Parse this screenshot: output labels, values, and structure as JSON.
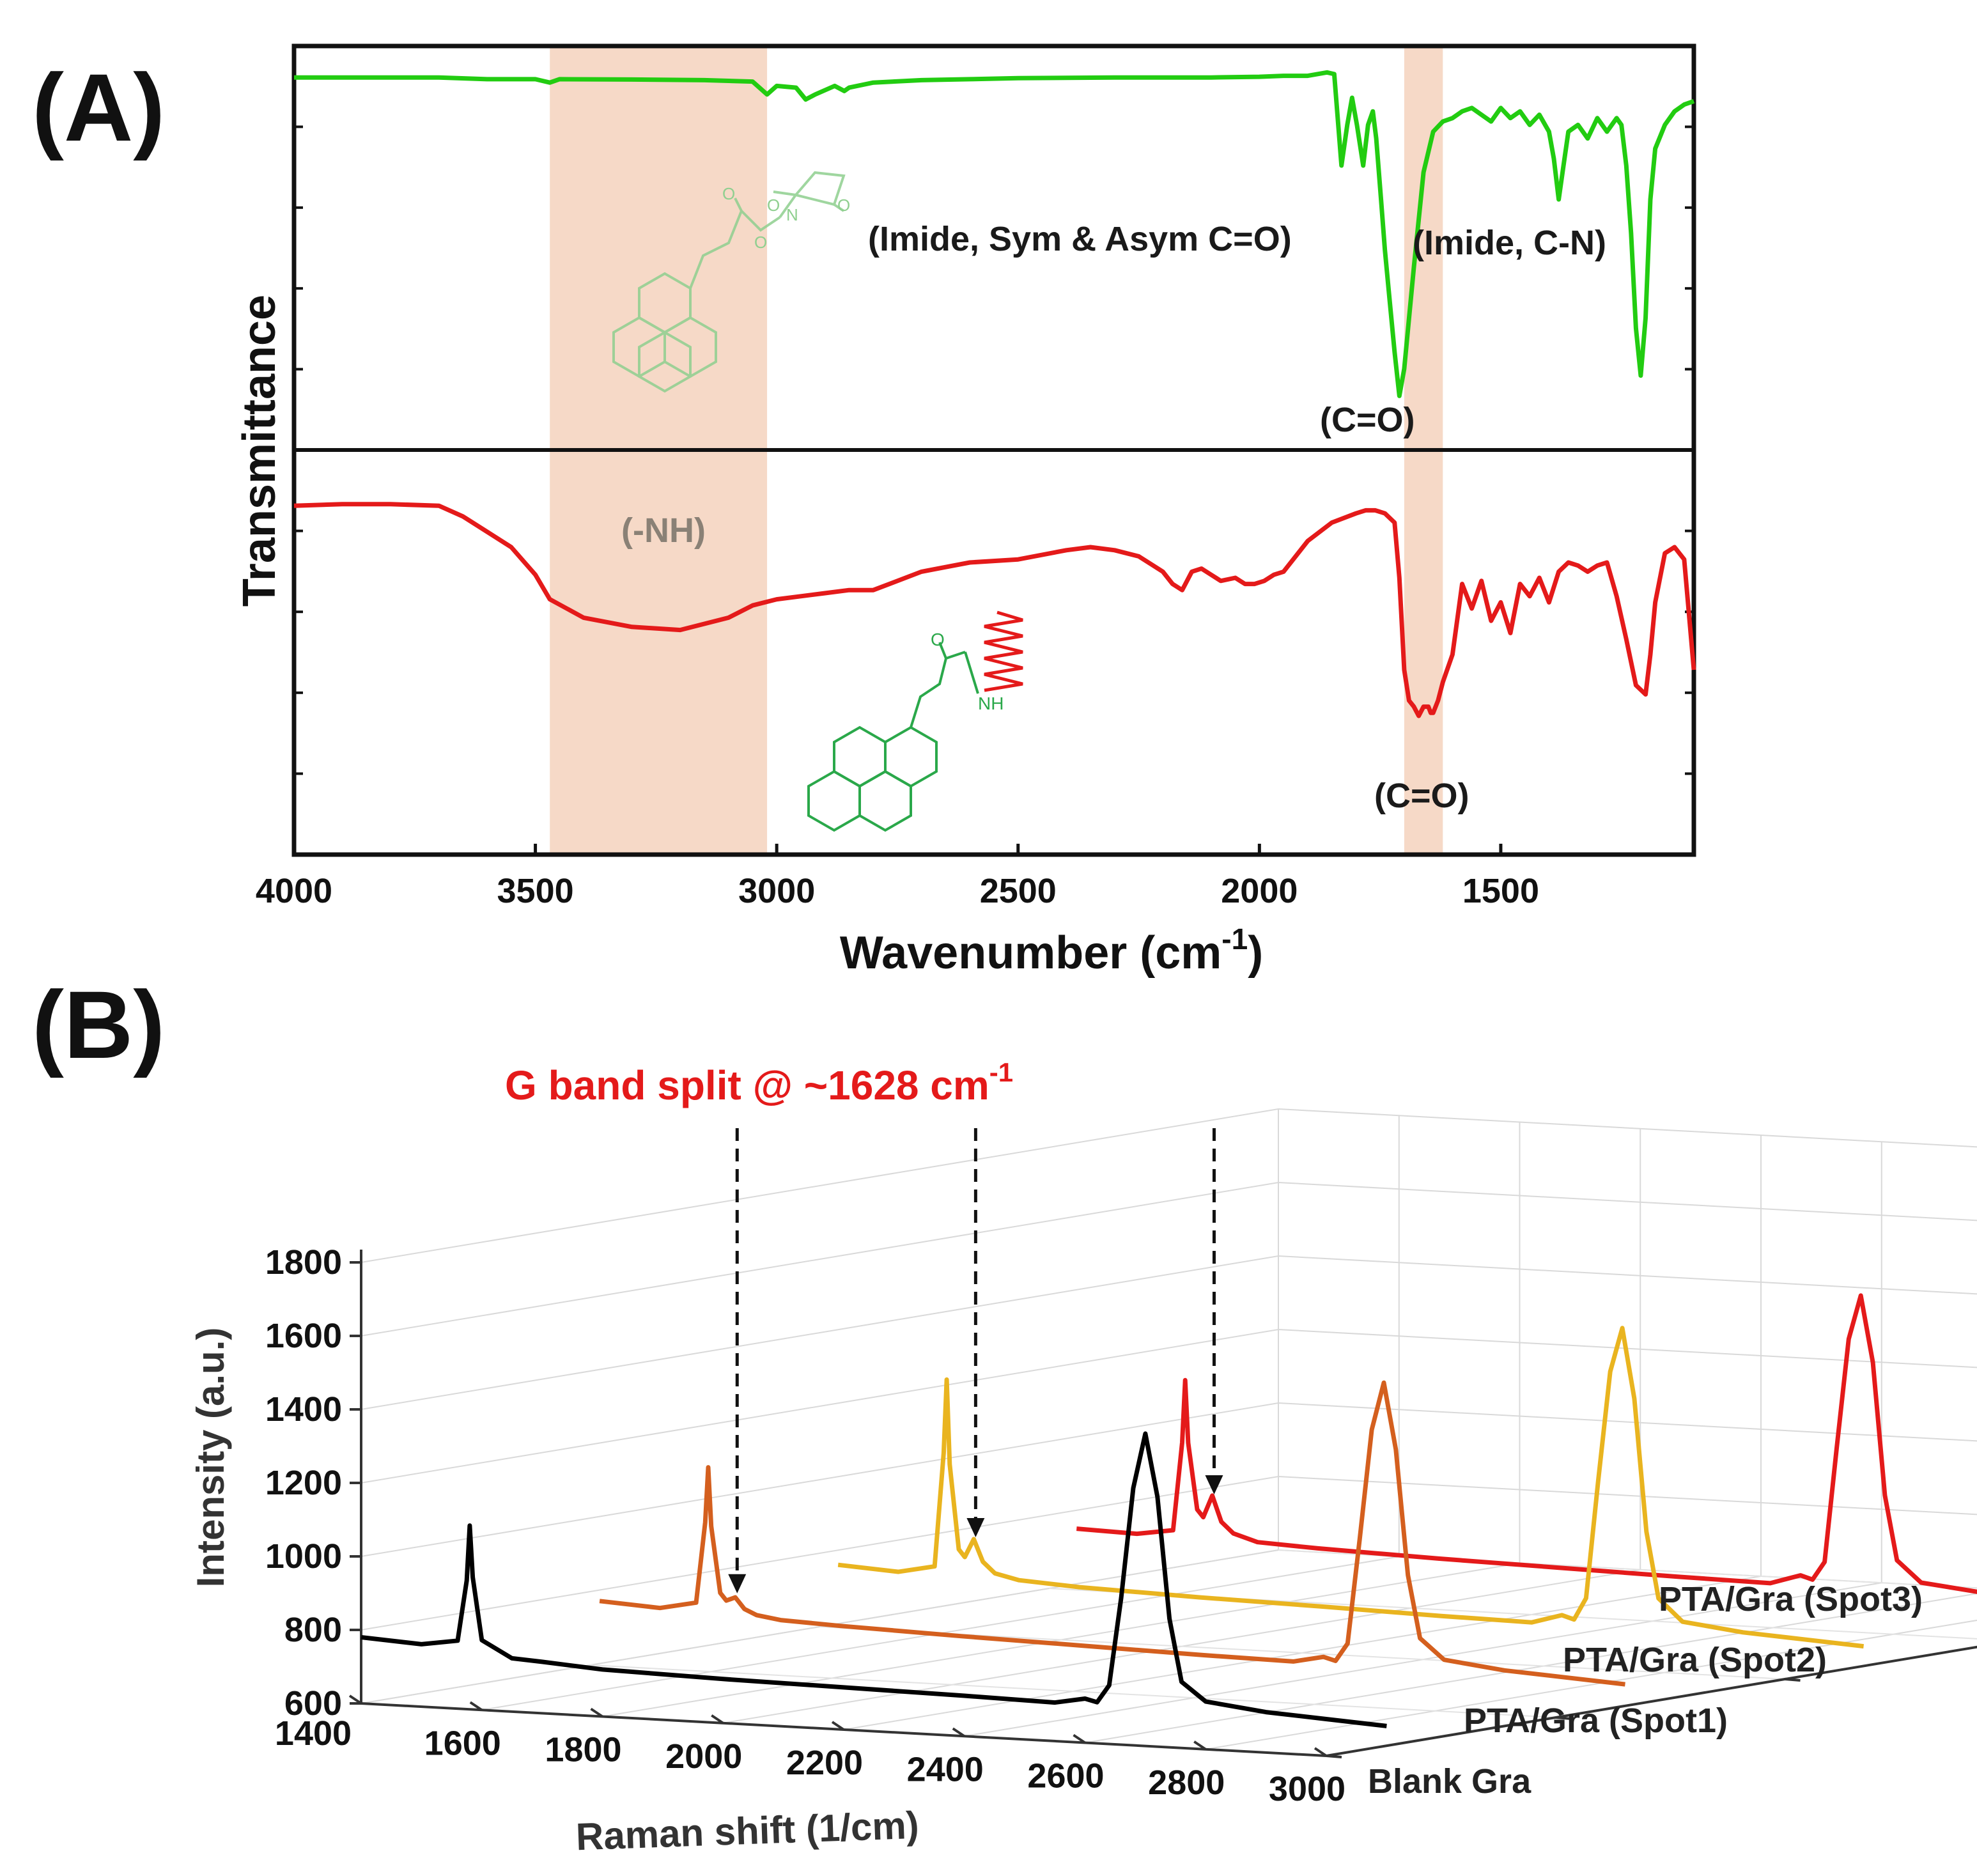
{
  "panel_a_label": "(A)",
  "panel_b_label": "(B)",
  "colors": {
    "ftir_top": "#22cc11",
    "ftir_bottom": "#e41a1a",
    "band": "#f6d9c7",
    "blank": "#000000",
    "spot1": "#d45f1e",
    "spot2": "#e9b41f",
    "spot3": "#e41a1a",
    "annotation_red": "#e41a1a"
  },
  "chart_data": [
    {
      "type": "line",
      "title": "",
      "xlabel": "Wavenumber (cm",
      "xlabel_sup": "-1",
      "xlabel_end": ")",
      "ylabel": "Transmittance",
      "xlim": [
        4000,
        1100
      ],
      "xticks": [
        "4000",
        "3500",
        "3000",
        "2500",
        "2000",
        "1500"
      ],
      "highlight_bands": [
        [
          3470,
          3020
        ],
        [
          1700,
          1620
        ]
      ],
      "annotations": {
        "imide_co": "(Imide, Sym & Asym C=O)",
        "imide_cn": "(Imide, C-N)",
        "co_top": "(C=O)",
        "nh": "(-NH)",
        "co_bottom": "(C=O)"
      },
      "structure_labels": {
        "o1": "O",
        "o2": "O",
        "o3": "O",
        "o4": "O",
        "n": "N",
        "o5": "O",
        "nh": "NH"
      },
      "series": [
        {
          "name": "top",
          "x": [
            4000,
            3900,
            3800,
            3700,
            3600,
            3500,
            3470,
            3450,
            3300,
            3150,
            3050,
            3020,
            3000,
            2960,
            2940,
            2920,
            2880,
            2860,
            2850,
            2800,
            2700,
            2600,
            2500,
            2400,
            2300,
            2200,
            2100,
            2000,
            1950,
            1900,
            1860,
            1845,
            1830,
            1818,
            1808,
            1798,
            1785,
            1775,
            1765,
            1758,
            1748,
            1740,
            1730,
            1720,
            1710,
            1700,
            1680,
            1660,
            1640,
            1620,
            1600,
            1580,
            1560,
            1540,
            1520,
            1500,
            1480,
            1460,
            1440,
            1420,
            1400,
            1390,
            1380,
            1370,
            1360,
            1340,
            1320,
            1300,
            1280,
            1260,
            1250,
            1240,
            1230,
            1220,
            1210,
            1200,
            1190,
            1180,
            1160,
            1140,
            1120,
            1100
          ],
          "y": [
            96,
            96,
            96,
            96,
            95.5,
            95.5,
            94.5,
            95.5,
            95.4,
            95.2,
            94.8,
            91,
            93.5,
            93,
            89.5,
            91,
            93.5,
            92,
            93,
            94.5,
            95.2,
            95.5,
            95.8,
            95.9,
            96,
            96,
            96,
            96.2,
            96.5,
            96.5,
            97.5,
            97,
            70,
            82,
            90,
            82,
            70,
            82,
            86,
            78,
            60,
            45,
            30,
            15,
            2,
            10,
            40,
            68,
            80,
            83,
            84,
            86,
            87,
            85,
            83,
            87,
            84,
            86,
            82,
            85,
            80,
            72,
            60,
            70,
            80,
            82,
            78,
            84,
            80,
            84,
            82,
            70,
            50,
            22,
            8,
            25,
            60,
            75,
            82,
            86,
            88,
            89
          ]
        },
        {
          "name": "bottom",
          "x": [
            4000,
            3900,
            3800,
            3700,
            3650,
            3600,
            3550,
            3500,
            3470,
            3400,
            3300,
            3200,
            3100,
            3050,
            3000,
            2950,
            2900,
            2850,
            2800,
            2700,
            2600,
            2500,
            2400,
            2350,
            2300,
            2250,
            2200,
            2180,
            2160,
            2150,
            2140,
            2120,
            2100,
            2080,
            2050,
            2030,
            2010,
            1990,
            1970,
            1950,
            1900,
            1850,
            1800,
            1780,
            1760,
            1740,
            1720,
            1710,
            1700,
            1690,
            1680,
            1670,
            1660,
            1650,
            1645,
            1640,
            1630,
            1620,
            1600,
            1580,
            1560,
            1540,
            1520,
            1500,
            1480,
            1460,
            1440,
            1420,
            1400,
            1380,
            1360,
            1340,
            1320,
            1300,
            1280,
            1260,
            1240,
            1220,
            1200,
            1190,
            1180,
            1160,
            1140,
            1120,
            1100
          ],
          "y": [
            93.5,
            94,
            94,
            93.5,
            90,
            85,
            80,
            71,
            63,
            57,
            54,
            53,
            57,
            61,
            63,
            64,
            65,
            66,
            66,
            72,
            75,
            76,
            79,
            80,
            79,
            77,
            72,
            68,
            66,
            69,
            72,
            73,
            71,
            69,
            70,
            68,
            68,
            69,
            71,
            72,
            82,
            88,
            91,
            92,
            92,
            91,
            88,
            70,
            40,
            30,
            28,
            25,
            28,
            28,
            26,
            26,
            30,
            36,
            45,
            68,
            60,
            69,
            56,
            62,
            52,
            68,
            64,
            70,
            62,
            72,
            75,
            74,
            72,
            74,
            75,
            64,
            50,
            35,
            32,
            45,
            62,
            78,
            80,
            76,
            40
          ]
        }
      ]
    },
    {
      "type": "line",
      "title": "",
      "xlabel": "Raman shift (1/cm)",
      "ylabel": "Intensity (a.u.)",
      "xlim": [
        1400,
        3000
      ],
      "ylim": [
        600,
        1800
      ],
      "xticks": [
        "1400",
        "1600",
        "1800",
        "2000",
        "2200",
        "2400",
        "2600",
        "2800",
        "3000"
      ],
      "yticks": [
        "600",
        "800",
        "1000",
        "1200",
        "1400",
        "1600",
        "1800"
      ],
      "annotation": "G band split @ ~1628 cm",
      "annotation_sup": "-1",
      "series": [
        {
          "name": "Blank Gra",
          "x": [
            1400,
            1500,
            1560,
            1575,
            1580,
            1585,
            1600,
            1650,
            1700,
            1800,
            2000,
            2200,
            2400,
            2550,
            2600,
            2620,
            2640,
            2660,
            2680,
            2700,
            2720,
            2740,
            2760,
            2800,
            2900,
            3000,
            3100
          ],
          "y": [
            780,
            770,
            785,
            950,
            1100,
            960,
            790,
            745,
            740,
            728,
            720,
            715,
            710,
            705,
            720,
            712,
            760,
            1000,
            1300,
            1450,
            1280,
            950,
            780,
            730,
            710,
            700,
            690
          ]
        },
        {
          "name": "PTA/Gra (Spot1)",
          "x": [
            1400,
            1500,
            1560,
            1575,
            1580,
            1585,
            1600,
            1610,
            1625,
            1640,
            1660,
            1700,
            1800,
            2000,
            2200,
            2400,
            2550,
            2600,
            2620,
            2640,
            2660,
            2680,
            2700,
            2720,
            2740,
            2760,
            2800,
            2900,
            3000,
            3100
          ],
          "y": [
            770,
            760,
            780,
            1000,
            1150,
            990,
            810,
            790,
            800,
            770,
            755,
            745,
            738,
            728,
            720,
            712,
            708,
            725,
            716,
            765,
            1050,
            1350,
            1480,
            1300,
            960,
            790,
            735,
            715,
            705,
            695
          ]
        },
        {
          "name": "PTA/Gra (Spot2)",
          "x": [
            1400,
            1500,
            1560,
            1575,
            1580,
            1585,
            1600,
            1610,
            1625,
            1640,
            1660,
            1700,
            1800,
            2000,
            2200,
            2400,
            2550,
            2600,
            2620,
            2640,
            2660,
            2680,
            2700,
            2720,
            2740,
            2760,
            2800,
            2900,
            3000,
            3100
          ],
          "y": [
            760,
            750,
            770,
            1080,
            1280,
            1050,
            820,
            800,
            850,
            790,
            760,
            745,
            735,
            725,
            718,
            710,
            706,
            730,
            720,
            780,
            1100,
            1400,
            1520,
            1330,
            970,
            790,
            730,
            710,
            700,
            690
          ]
        },
        {
          "name": "PTA/Gra (Spot3)",
          "x": [
            1400,
            1500,
            1560,
            1575,
            1580,
            1585,
            1600,
            1610,
            1625,
            1640,
            1660,
            1700,
            1800,
            2000,
            2200,
            2400,
            2550,
            2600,
            2620,
            2640,
            2660,
            2680,
            2700,
            2720,
            2740,
            2760,
            2800,
            2900,
            3000,
            3100
          ],
          "y": [
            750,
            745,
            760,
            1000,
            1170,
            1000,
            820,
            800,
            860,
            790,
            760,
            740,
            732,
            722,
            715,
            708,
            704,
            730,
            720,
            770,
            1080,
            1380,
            1500,
            1320,
            960,
            785,
            728,
            710,
            700,
            690
          ]
        }
      ],
      "series_labels": [
        "Blank Gra",
        "PTA/Gra (Spot1)",
        "PTA/Gra (Spot2)",
        "PTA/Gra (Spot3)"
      ]
    }
  ]
}
